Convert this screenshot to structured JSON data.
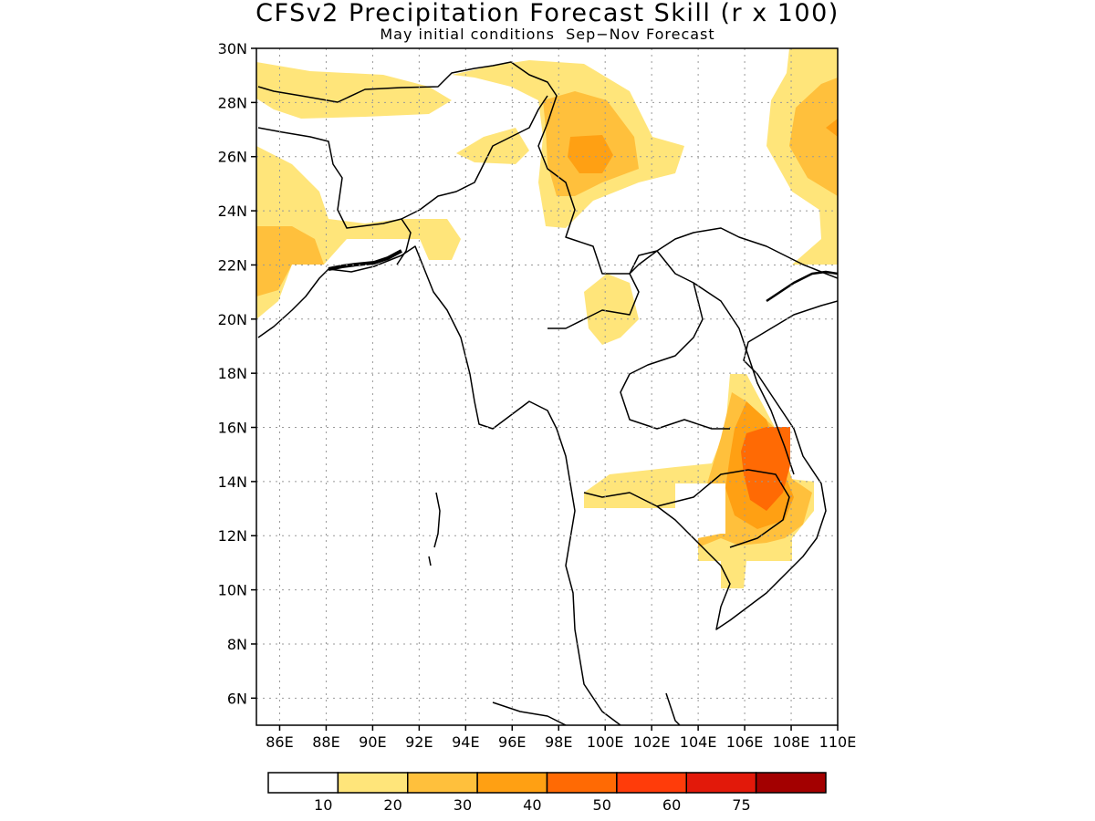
{
  "title": "CFSv2 Precipitation Forecast Skill (r x 100)",
  "subtitle": "May initial conditions  Sep−Nov Forecast",
  "map": {
    "lon_range": [
      85,
      110
    ],
    "lat_range": [
      5,
      30
    ],
    "lat_ticks": [
      "6N",
      "8N",
      "10N",
      "12N",
      "14N",
      "16N",
      "18N",
      "20N",
      "22N",
      "24N",
      "26N",
      "28N",
      "30N"
    ],
    "lat_values": [
      6,
      8,
      10,
      12,
      14,
      16,
      18,
      20,
      22,
      24,
      26,
      28,
      30
    ],
    "lon_ticks": [
      "86E",
      "88E",
      "90E",
      "92E",
      "94E",
      "96E",
      "98E",
      "100E",
      "102E",
      "104E",
      "106E",
      "108E",
      "110E"
    ],
    "lon_values": [
      86,
      88,
      90,
      92,
      94,
      96,
      98,
      100,
      102,
      104,
      106,
      108,
      110
    ]
  },
  "colorbar": {
    "labels": [
      "10",
      "20",
      "30",
      "40",
      "50",
      "60",
      "75"
    ],
    "colors": [
      "#ffffff",
      "#ffe57a",
      "#ffc03c",
      "#ffa013",
      "#ff6a04",
      "#ff3c0a",
      "#e2190a",
      "#a30000"
    ]
  }
}
